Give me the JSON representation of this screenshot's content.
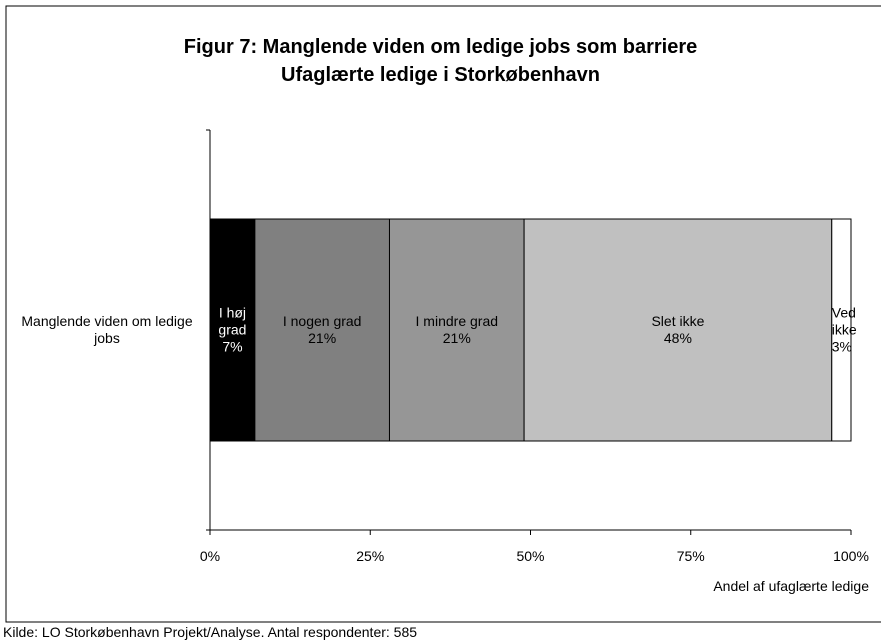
{
  "chart_data": {
    "type": "stacked_barh",
    "title": "Figur 7: Manglende viden om ledige jobs som barriere",
    "subtitle": "Ufaglærte ledige i Storkøbenhavn",
    "categories": [
      "Manglende viden om ledige jobs"
    ],
    "series": [
      {
        "name": "I høj grad",
        "color": "#000000",
        "values": [
          7
        ],
        "value_labels": [
          "7%"
        ]
      },
      {
        "name": "I nogen grad",
        "color": "#808080",
        "values": [
          21
        ],
        "value_labels": [
          "21%"
        ]
      },
      {
        "name": "I mindre grad",
        "color": "#969696",
        "values": [
          21
        ],
        "value_labels": [
          "21%"
        ]
      },
      {
        "name": "Slet ikke",
        "color": "#c0c0c0",
        "values": [
          48
        ],
        "value_labels": [
          "48%"
        ]
      },
      {
        "name": "Ved ikke",
        "color": "#ffffff",
        "values": [
          3
        ],
        "value_labels": [
          "3%"
        ]
      }
    ],
    "xlim": [
      0,
      100
    ],
    "xticks": [
      {
        "value": 0,
        "label": "0%"
      },
      {
        "value": 25,
        "label": "25%"
      },
      {
        "value": 50,
        "label": "50%"
      },
      {
        "value": 75,
        "label": "75%"
      },
      {
        "value": 100,
        "label": "100%"
      }
    ],
    "xlabel": "Andel af ufaglærte ledige",
    "source": "Kilde: LO Storkøbenhavn Projekt/Analyse. Antal respondenter: 585"
  }
}
